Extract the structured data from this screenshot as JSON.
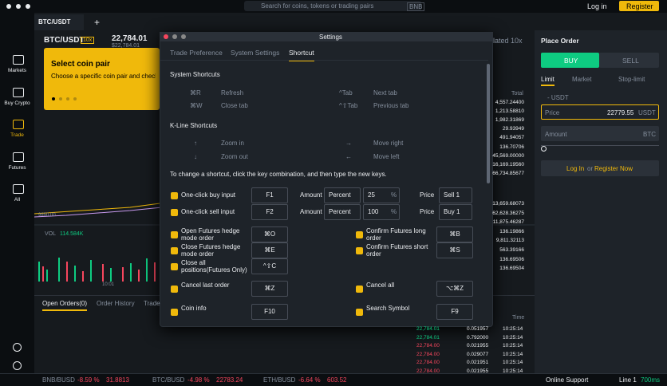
{
  "header": {
    "search": "Search for coins, tokens or trading pairs",
    "search_hint": "BNB",
    "login": "Log in",
    "register": "Register"
  },
  "sidebar": [
    "Markets",
    "Buy Crypto",
    "Trade",
    "Futures",
    "All"
  ],
  "tabs": {
    "active": "BTC/USDT",
    "add": "+"
  },
  "ticker": {
    "pair": "BTC/USDT",
    "leverage": "10x",
    "price": "22,784.01",
    "usd": "$22,784.01",
    "isolated": "lated 10x"
  },
  "tooltip": {
    "title": "Select coin pair",
    "text": "Choose a specific coin pair and check"
  },
  "chart": {
    "price_label": "9850.00",
    "vol_label": "VOL",
    "vol_value": "114.584K",
    "time_label": "10:01"
  },
  "settings": {
    "title": "Settings",
    "tabs": [
      "Trade Preference",
      "System Settings",
      "Shortcut"
    ],
    "system_title": "System Shortcuts",
    "system": [
      {
        "key": "⌘R",
        "label": "Refresh"
      },
      {
        "key": "^Tab",
        "label": "Next tab"
      },
      {
        "key": "⌘W",
        "label": "Close tab"
      },
      {
        "key": "^⇧Tab",
        "label": "Previous tab"
      }
    ],
    "kline_title": "K-Line Shortcuts",
    "kline": [
      {
        "key": "↑",
        "label": "Zoom in"
      },
      {
        "key": "→",
        "label": "Move right"
      },
      {
        "key": "↓",
        "label": "Zoom out"
      },
      {
        "key": "←",
        "label": "Move left"
      }
    ],
    "note": "To change a shortcut, click the key combination, and then type the new keys.",
    "quick": [
      {
        "label": "One-click buy input",
        "key": "F1",
        "amount_label": "Amount",
        "mode": "Percent",
        "amount": "25",
        "unit": "%",
        "price_label": "Price",
        "price": "Sell 1"
      },
      {
        "label": "One-click sell input",
        "key": "F2",
        "amount_label": "Amount",
        "mode": "Percent",
        "amount": "100",
        "unit": "%",
        "price_label": "Price",
        "price": "Buy 1"
      }
    ],
    "pairs": [
      [
        {
          "label": "Open Futures hedge mode order",
          "key": "⌘O"
        },
        {
          "label": "Confirm Futures long order",
          "key": "⌘B"
        }
      ],
      [
        {
          "label": "Close Futures hedge mode order",
          "key": "⌘E"
        },
        {
          "label": "Confirm Futures short order",
          "key": "⌘S"
        }
      ],
      [
        {
          "label": "Close all positions(Futures Only)",
          "key": "^⇧C"
        },
        null
      ],
      [
        {
          "label": "Cancel last order",
          "key": "⌘Z"
        },
        {
          "label": "Cancel all",
          "key": "⌥⌘Z"
        }
      ],
      [
        {
          "label": "Coin info",
          "key": "F10"
        },
        {
          "label": "Search Symbol",
          "key": "F9"
        }
      ]
    ]
  },
  "order_form": {
    "title": "Place Order",
    "buy": "BUY",
    "sell": "SELL",
    "types": [
      "Limit",
      "Market",
      "Stop-limit"
    ],
    "balance": "- USDT",
    "price_label": "Price",
    "price": "22779.55",
    "price_unit": "USDT",
    "amount_label": "Amount",
    "amount_unit": "BTC",
    "login": "Log In",
    "or": "or",
    "register": "Register Now"
  },
  "order_book": {
    "header": "Total",
    "asks": [
      "4,557.24400",
      "1,213.58810",
      "1,982.31869",
      "29.93949",
      "491.94057",
      "136.70706",
      "45,569.00000",
      "16,169.19560",
      "66,734.85677"
    ],
    "bids": [
      "13,659.68073",
      "62,628.36275",
      "11,875.46287",
      "136.19866",
      "9,811.32113",
      "563.39166",
      "136.69506",
      "136.69504"
    ]
  },
  "trades": {
    "header": "Time",
    "rows": [
      [
        "22,784.01",
        "0.051957",
        "10:25:14"
      ],
      [
        "22,784.01",
        "0.792000",
        "10:25:14"
      ],
      [
        "22,784.00",
        "0.021955",
        "10:25:14"
      ],
      [
        "22,784.00",
        "0.029077",
        "10:25:14"
      ],
      [
        "22,784.00",
        "0.021951",
        "10:25:14"
      ],
      [
        "22,784.00",
        "0.021955",
        "10:25:14"
      ]
    ],
    "colors": [
      "#0ecb81",
      "#0ecb81",
      "#f6465d",
      "#f6465d",
      "#f6465d",
      "#f6465d"
    ]
  },
  "bottom_tabs": [
    "Open Orders(0)",
    "Order History",
    "Trade"
  ],
  "footer": {
    "tickers": [
      [
        "BNB/BUSD",
        "-8.59 %",
        "31.8813"
      ],
      [
        "BTC/BUSD",
        "-4.98 %",
        "22783.24"
      ],
      [
        "ETH/BUSD",
        "-6.64 %",
        "603.52"
      ]
    ],
    "support": "Online Support",
    "line": "Line 1",
    "latency": "700ms"
  }
}
